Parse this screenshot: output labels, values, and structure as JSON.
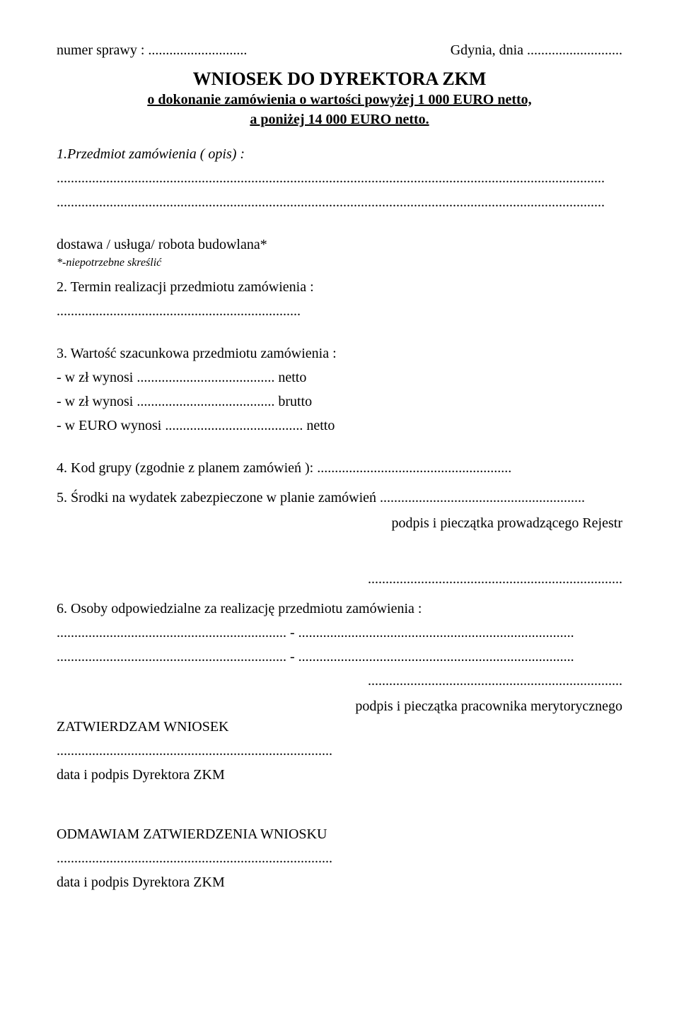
{
  "header": {
    "city_date_prefix": "Gdynia, dnia",
    "city_date_dots": "...........................",
    "case_number_label": "numer sprawy :",
    "case_number_dots": "............................"
  },
  "title": {
    "main": "WNIOSEK DO DYREKTORA ZKM",
    "line1": "o dokonanie zamówienia o wartości powyżej 1 000  EURO netto,",
    "line2": "a poniżej  14 000 EURO netto."
  },
  "item1": {
    "label": "1.Przedmiot zamówienia  ( opis) :",
    "dots1": "...........................................................................................................................................................",
    "dots2": "..........................................................................................................................................................."
  },
  "delivery": {
    "line": "dostawa / usługa/ robota budowlana*",
    "note": "*-niepotrzebne skreślić"
  },
  "item2": {
    "label": "2. Termin realizacji przedmiotu zamówienia :",
    "dots": "....................................................................."
  },
  "item3": {
    "label": "3. Wartość szacunkowa przedmiotu  zamówienia :",
    "line_a_prefix": "- w zł  wynosi",
    "line_a_dots": ".......................................",
    "line_a_suffix": "netto",
    "line_b_prefix": "- w zł  wynosi",
    "line_b_dots": ".......................................",
    "line_b_suffix": "brutto",
    "line_c_prefix": "- w EURO wynosi",
    "line_c_dots": ".......................................",
    "line_c_suffix": "netto"
  },
  "item4": {
    "label": "4. Kod grupy (zgodnie z planem zamówień ):",
    "dots": "......................................................."
  },
  "item5": {
    "label": "5. Środki na wydatek zabezpieczone w planie zamówień",
    "dots": "..........................................................",
    "sig_label": "podpis i pieczątka  prowadzącego Rejestr",
    "sig_dots": "........................................................................"
  },
  "item6": {
    "label": "6. Osoby odpowiedzialne za realizację przedmiotu zamówienia :",
    "row_left_dots": ".................................................................",
    "row_dash": " - ",
    "row_right_dots": "..............................................................................",
    "sig_dots": "........................................................................",
    "sig_label": "podpis i pieczątka pracownika merytorycznego"
  },
  "approve": {
    "title": "ZATWIERDZAM  WNIOSEK",
    "dots": "..............................................................................",
    "label": "data i podpis  Dyrektora ZKM"
  },
  "refuse": {
    "title": "ODMAWIAM ZATWIERDZENIA WNIOSKU",
    "dots": "..............................................................................",
    "label": "data i podpis Dyrektora ZKM"
  }
}
